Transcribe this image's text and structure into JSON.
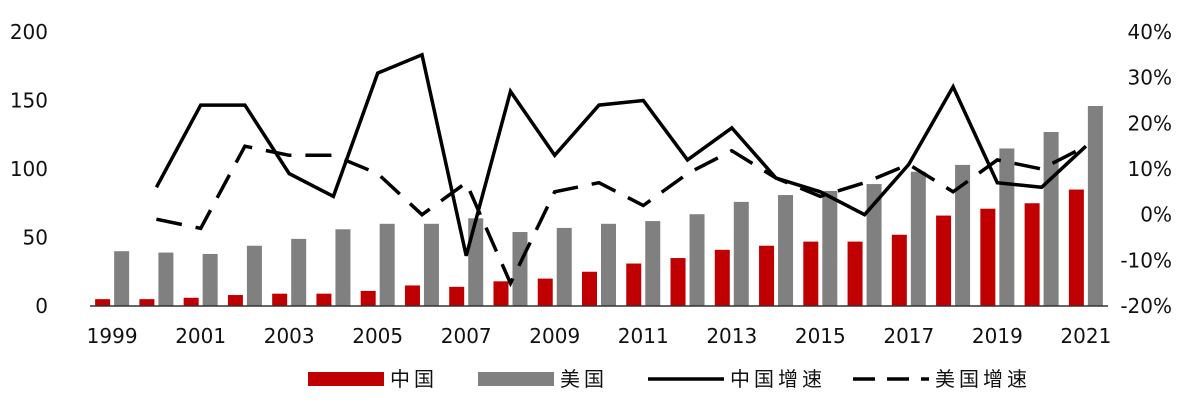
{
  "chart_data": {
    "type": "bar+line",
    "x": [
      "1999",
      "2000",
      "2001",
      "2002",
      "2003",
      "2004",
      "2005",
      "2006",
      "2007",
      "2008",
      "2009",
      "2010",
      "2011",
      "2012",
      "2013",
      "2014",
      "2015",
      "2016",
      "2017",
      "2018",
      "2019",
      "2020",
      "2021"
    ],
    "x_tick_labels": [
      "1999",
      "2001",
      "2003",
      "2005",
      "2007",
      "2009",
      "2011",
      "2013",
      "2015",
      "2017",
      "2019",
      "2021"
    ],
    "y_left": {
      "min": 0,
      "max": 200,
      "ticks": [
        "0",
        "50",
        "100",
        "150",
        "200"
      ]
    },
    "y_right": {
      "min": -20,
      "max": 40,
      "ticks": [
        "-20%",
        "-10%",
        "0%",
        "10%",
        "20%",
        "30%",
        "40%"
      ]
    },
    "grid": false,
    "legend_position": "bottom",
    "series": [
      {
        "name": "中国",
        "kind": "bar",
        "axis": "left",
        "color": "#c00000",
        "values": [
          5,
          5,
          6,
          8,
          9,
          9,
          11,
          15,
          14,
          18,
          20,
          25,
          31,
          35,
          41,
          44,
          47,
          47,
          52,
          66,
          71,
          75,
          85
        ]
      },
      {
        "name": "美国",
        "kind": "bar",
        "axis": "left",
        "color": "#808080",
        "values": [
          40,
          39,
          38,
          44,
          49,
          56,
          60,
          60,
          64,
          54,
          57,
          60,
          62,
          67,
          76,
          81,
          84,
          89,
          98,
          103,
          115,
          127,
          146
        ]
      },
      {
        "name": "中国增速",
        "kind": "line",
        "axis": "right",
        "color": "#000000",
        "dash": "solid",
        "values": [
          null,
          6,
          24,
          24,
          9,
          4,
          31,
          35,
          -9,
          27,
          13,
          24,
          25,
          12,
          19,
          8,
          5,
          0,
          11,
          28,
          7,
          6,
          15
        ]
      },
      {
        "name": "美国增速",
        "kind": "line",
        "axis": "right",
        "color": "#000000",
        "dash": "dashed",
        "values": [
          null,
          -1,
          -3,
          15,
          13,
          13,
          9,
          0,
          7,
          -15,
          5,
          7,
          2,
          9,
          14,
          8,
          4,
          7,
          11,
          5,
          12,
          10,
          15
        ]
      }
    ]
  }
}
